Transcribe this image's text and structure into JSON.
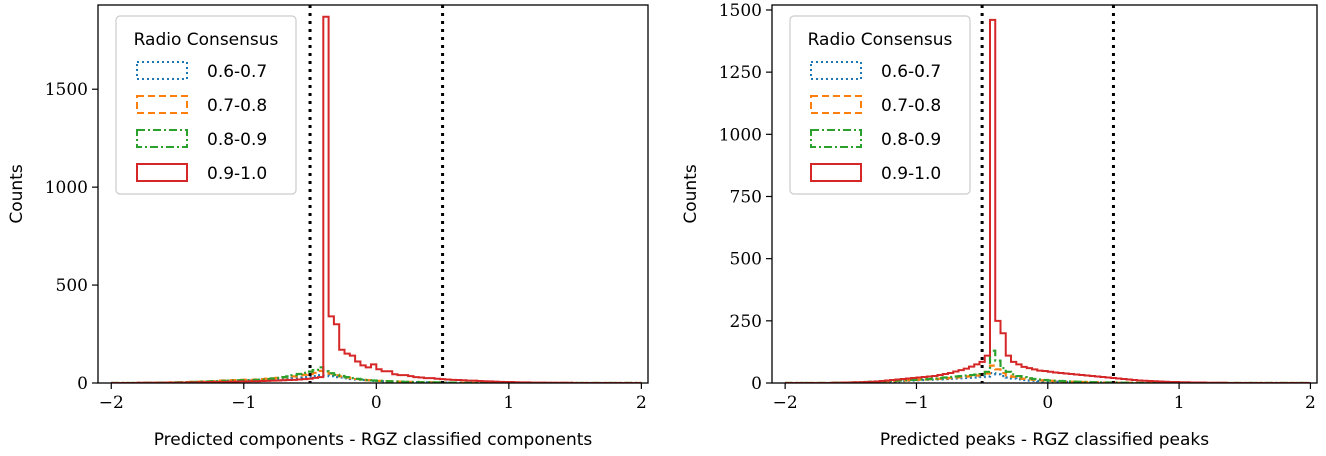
{
  "colors": {
    "0.6-0.7": "#1f77b4",
    "0.7-0.8": "#ff7f0e",
    "0.8-0.9": "#2ca02c",
    "0.9-1.0": "#d62728",
    "threshold": "#000000"
  },
  "chart_data": [
    {
      "type": "histogram",
      "xlabel": "Predicted components - RGZ classified components",
      "ylabel": "Counts",
      "xlim": [
        -2.1,
        2.05
      ],
      "ylim": [
        0,
        1930
      ],
      "xticks": [
        -2,
        -1,
        0,
        1,
        2
      ],
      "xtick_labels": [
        "−2",
        "−1",
        "0",
        "1",
        "2"
      ],
      "yticks": [
        0,
        500,
        1000,
        1500
      ],
      "ytick_labels": [
        "0",
        "500",
        "1000",
        "1500"
      ],
      "threshold_lines": [
        -0.5,
        0.5
      ],
      "bin_start": -2.0,
      "bin_width": 0.04,
      "legend": {
        "title": "Radio Consensus",
        "position": "upper-left",
        "entries": [
          {
            "label": "0.6-0.7",
            "style": "dotted"
          },
          {
            "label": "0.7-0.8",
            "style": "dashed"
          },
          {
            "label": "0.8-0.9",
            "style": "dashdot"
          },
          {
            "label": "0.9-1.0",
            "style": "solid"
          }
        ]
      },
      "series": [
        {
          "name": "0.6-0.7",
          "style": "dotted",
          "values": [
            0,
            0,
            0,
            0,
            0,
            0,
            1,
            1,
            1,
            1,
            2,
            2,
            2,
            3,
            3,
            4,
            4,
            5,
            6,
            7,
            8,
            9,
            10,
            11,
            12,
            13,
            12,
            14,
            15,
            16,
            17,
            18,
            20,
            22,
            25,
            28,
            30,
            32,
            36,
            40,
            38,
            35,
            30,
            28,
            24,
            20,
            18,
            15,
            13,
            11,
            10,
            9,
            8,
            7,
            6,
            5,
            5,
            4,
            4,
            3,
            3,
            2,
            2,
            2,
            1,
            1,
            1,
            1,
            1,
            0,
            0,
            0,
            0,
            0,
            0,
            0,
            0,
            0,
            0,
            0,
            0,
            0,
            0,
            0,
            0,
            0,
            0,
            0,
            0,
            0,
            0,
            0,
            0,
            0,
            0,
            0,
            0,
            0,
            0,
            0
          ]
        },
        {
          "name": "0.7-0.8",
          "style": "dashed",
          "values": [
            0,
            0,
            0,
            0,
            0,
            1,
            1,
            1,
            2,
            2,
            2,
            3,
            3,
            4,
            5,
            6,
            7,
            8,
            9,
            10,
            12,
            13,
            14,
            15,
            16,
            17,
            16,
            18,
            20,
            22,
            24,
            26,
            28,
            30,
            34,
            38,
            42,
            46,
            52,
            62,
            55,
            48,
            40,
            34,
            28,
            24,
            20,
            17,
            14,
            12,
            11,
            10,
            9,
            8,
            7,
            6,
            5,
            5,
            4,
            4,
            3,
            3,
            2,
            2,
            2,
            1,
            1,
            1,
            1,
            0,
            0,
            0,
            0,
            0,
            0,
            0,
            0,
            0,
            0,
            0,
            0,
            0,
            0,
            0,
            0,
            0,
            0,
            0,
            0,
            0,
            0,
            0,
            0,
            0,
            0,
            0,
            0,
            0,
            0,
            0
          ]
        },
        {
          "name": "0.8-0.9",
          "style": "dashdot",
          "values": [
            0,
            0,
            0,
            0,
            0,
            1,
            1,
            1,
            1,
            2,
            2,
            2,
            3,
            3,
            4,
            5,
            6,
            7,
            8,
            9,
            10,
            11,
            12,
            13,
            14,
            15,
            15,
            16,
            18,
            20,
            23,
            26,
            30,
            34,
            40,
            46,
            52,
            58,
            66,
            80,
            60,
            50,
            42,
            36,
            30,
            25,
            21,
            18,
            15,
            13,
            11,
            10,
            9,
            8,
            7,
            6,
            5,
            5,
            4,
            4,
            3,
            3,
            2,
            2,
            2,
            1,
            1,
            1,
            1,
            0,
            0,
            0,
            0,
            0,
            0,
            0,
            0,
            0,
            0,
            0,
            0,
            0,
            0,
            0,
            0,
            0,
            0,
            0,
            0,
            0,
            0,
            0,
            0,
            0,
            0,
            0,
            0,
            0,
            0,
            0
          ]
        },
        {
          "name": "0.9-1.0",
          "style": "solid",
          "values": [
            0,
            0,
            0,
            0,
            0,
            1,
            1,
            1,
            1,
            1,
            2,
            2,
            2,
            2,
            3,
            3,
            4,
            4,
            5,
            5,
            6,
            6,
            7,
            7,
            8,
            8,
            9,
            9,
            10,
            11,
            12,
            13,
            14,
            15,
            16,
            18,
            20,
            22,
            26,
            30,
            1870,
            340,
            300,
            170,
            150,
            140,
            110,
            90,
            80,
            95,
            70,
            60,
            60,
            45,
            40,
            40,
            35,
            30,
            28,
            25,
            25,
            22,
            20,
            18,
            16,
            15,
            14,
            12,
            12,
            10,
            9,
            8,
            7,
            6,
            5,
            5,
            4,
            3,
            3,
            2,
            2,
            2,
            1,
            1,
            1,
            1,
            1,
            0,
            0,
            0,
            0,
            0,
            0,
            0,
            0,
            0,
            0,
            0,
            0,
            0
          ]
        }
      ]
    },
    {
      "type": "histogram",
      "xlabel": "Predicted peaks - RGZ classified peaks",
      "ylabel": "Counts",
      "xlim": [
        -2.1,
        2.05
      ],
      "ylim": [
        0,
        1520
      ],
      "xticks": [
        -2,
        -1,
        0,
        1,
        2
      ],
      "xtick_labels": [
        "−2",
        "−1",
        "0",
        "1",
        "2"
      ],
      "yticks": [
        0,
        250,
        500,
        750,
        1000,
        1250,
        1500
      ],
      "ytick_labels": [
        "0",
        "250",
        "500",
        "750",
        "1000",
        "1250",
        "1500"
      ],
      "threshold_lines": [
        -0.5,
        0.5
      ],
      "bin_start": -2.0,
      "bin_width": 0.04,
      "legend": {
        "title": "Radio Consensus",
        "position": "upper-left",
        "entries": [
          {
            "label": "0.6-0.7",
            "style": "dotted"
          },
          {
            "label": "0.7-0.8",
            "style": "dashed"
          },
          {
            "label": "0.8-0.9",
            "style": "dashdot"
          },
          {
            "label": "0.9-1.0",
            "style": "solid"
          }
        ]
      },
      "series": [
        {
          "name": "0.6-0.7",
          "style": "dotted",
          "values": [
            0,
            0,
            0,
            0,
            0,
            0,
            0,
            0,
            0,
            1,
            1,
            1,
            1,
            2,
            2,
            3,
            3,
            4,
            5,
            5,
            6,
            7,
            8,
            9,
            10,
            11,
            12,
            13,
            14,
            15,
            16,
            17,
            18,
            19,
            20,
            21,
            22,
            24,
            26,
            40,
            35,
            28,
            22,
            18,
            15,
            12,
            10,
            9,
            8,
            7,
            6,
            5,
            5,
            4,
            4,
            3,
            3,
            2,
            2,
            2,
            1,
            1,
            1,
            1,
            0,
            0,
            0,
            0,
            0,
            0,
            0,
            0,
            0,
            0,
            0,
            0,
            0,
            0,
            0,
            0,
            0,
            0,
            0,
            0,
            0,
            0,
            0,
            0,
            0,
            0,
            0,
            0,
            0,
            0,
            0,
            0,
            0,
            0,
            0,
            0
          ]
        },
        {
          "name": "0.7-0.8",
          "style": "dashed",
          "values": [
            0,
            0,
            0,
            0,
            0,
            0,
            0,
            0,
            0,
            1,
            1,
            1,
            2,
            2,
            3,
            3,
            4,
            5,
            6,
            7,
            8,
            9,
            10,
            11,
            12,
            13,
            14,
            15,
            16,
            17,
            18,
            20,
            22,
            24,
            26,
            28,
            30,
            32,
            38,
            70,
            55,
            40,
            30,
            25,
            20,
            17,
            15,
            13,
            11,
            10,
            9,
            8,
            7,
            6,
            5,
            5,
            4,
            4,
            3,
            3,
            2,
            2,
            2,
            1,
            1,
            1,
            0,
            0,
            0,
            0,
            0,
            0,
            0,
            0,
            0,
            0,
            0,
            0,
            0,
            0,
            0,
            0,
            0,
            0,
            0,
            0,
            0,
            0,
            0,
            0,
            0,
            0,
            0,
            0,
            0,
            0,
            0,
            0,
            0,
            0
          ]
        },
        {
          "name": "0.8-0.9",
          "style": "dashdot",
          "values": [
            0,
            0,
            0,
            0,
            0,
            0,
            0,
            0,
            0,
            1,
            1,
            1,
            2,
            2,
            3,
            4,
            5,
            6,
            7,
            8,
            9,
            10,
            11,
            12,
            13,
            14,
            15,
            16,
            18,
            20,
            22,
            24,
            26,
            28,
            30,
            32,
            34,
            36,
            45,
            130,
            90,
            60,
            45,
            35,
            28,
            23,
            19,
            16,
            14,
            12,
            10,
            9,
            8,
            7,
            6,
            5,
            5,
            4,
            3,
            3,
            2,
            2,
            2,
            1,
            1,
            1,
            0,
            0,
            0,
            0,
            0,
            0,
            0,
            0,
            0,
            0,
            0,
            0,
            0,
            0,
            0,
            0,
            0,
            0,
            0,
            0,
            0,
            0,
            0,
            0,
            0,
            0,
            0,
            0,
            0,
            0,
            0,
            0,
            0,
            0
          ]
        },
        {
          "name": "0.9-1.0",
          "style": "solid",
          "values": [
            0,
            0,
            0,
            0,
            0,
            0,
            0,
            0,
            0,
            1,
            1,
            2,
            2,
            3,
            3,
            4,
            5,
            6,
            8,
            10,
            12,
            14,
            16,
            18,
            20,
            22,
            24,
            26,
            28,
            32,
            36,
            40,
            46,
            52,
            58,
            66,
            75,
            85,
            110,
            1460,
            250,
            200,
            110,
            85,
            75,
            65,
            60,
            55,
            50,
            48,
            45,
            42,
            40,
            38,
            36,
            34,
            32,
            30,
            28,
            26,
            24,
            22,
            20,
            18,
            16,
            14,
            12,
            10,
            9,
            8,
            7,
            6,
            5,
            4,
            4,
            3,
            3,
            2,
            2,
            2,
            1,
            1,
            1,
            1,
            0,
            0,
            0,
            0,
            0,
            0,
            0,
            0,
            0,
            0,
            0,
            0,
            0,
            0,
            0,
            0
          ]
        }
      ]
    }
  ]
}
